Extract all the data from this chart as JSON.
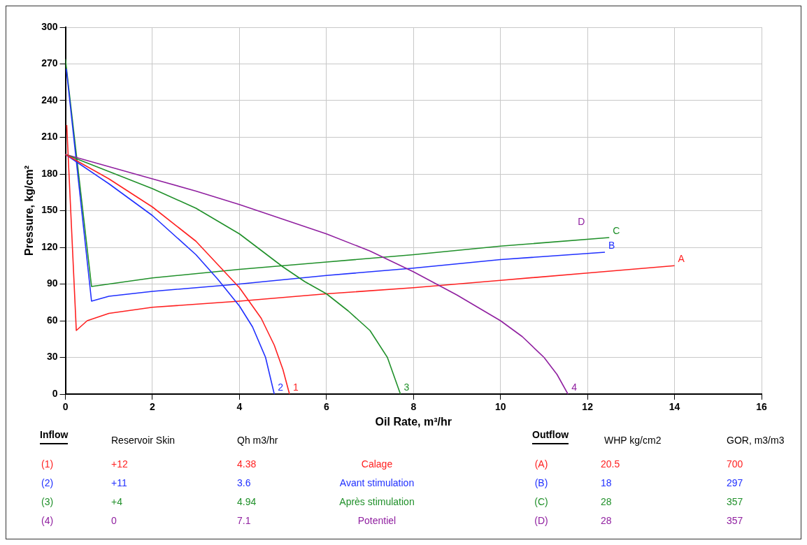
{
  "chart_data": {
    "type": "line",
    "xlabel": "Oil Rate, m³/hr",
    "ylabel": "Pressure, kg/cm²",
    "xlim": [
      0,
      16
    ],
    "ylim": [
      0,
      300
    ],
    "xticks": [
      0,
      2,
      4,
      6,
      8,
      10,
      12,
      14,
      16
    ],
    "yticks": [
      0,
      30,
      60,
      90,
      120,
      150,
      180,
      210,
      240,
      270,
      300
    ],
    "grid": true,
    "legend": false,
    "marker": "none",
    "line_style": "solid",
    "series": [
      {
        "name": "1",
        "color": "#ff2020",
        "x": [
          0,
          1,
          2,
          3,
          3.5,
          4,
          4.5,
          4.8,
          5.0,
          5.15
        ],
        "values": [
          196,
          176,
          153,
          125,
          106,
          87,
          62,
          40,
          20,
          0
        ]
      },
      {
        "name": "2",
        "color": "#2030ff",
        "x": [
          0,
          1,
          2,
          3,
          3.5,
          4,
          4.3,
          4.6,
          4.8
        ],
        "values": [
          196,
          172,
          146,
          114,
          94,
          72,
          55,
          30,
          0
        ]
      },
      {
        "name": "3",
        "color": "#20902a",
        "x": [
          0,
          1,
          2,
          3,
          4,
          5,
          5.5,
          6,
          6.5,
          7,
          7.4,
          7.7
        ],
        "values": [
          196,
          182,
          168,
          152,
          131,
          104,
          92,
          82,
          68,
          52,
          30,
          0
        ]
      },
      {
        "name": "4",
        "color": "#9020a0",
        "x": [
          0,
          1,
          2,
          3,
          4,
          5,
          6,
          7,
          8,
          9,
          10,
          10.5,
          11,
          11.3,
          11.55
        ],
        "values": [
          196,
          186,
          176,
          166,
          155,
          143,
          131,
          117,
          100,
          81,
          60,
          47,
          30,
          16,
          0
        ]
      },
      {
        "name": "A",
        "color": "#ff2020",
        "x": [
          0.03,
          0.25,
          0.5,
          1,
          2,
          4,
          6,
          8,
          10,
          12,
          14
        ],
        "values": [
          220,
          52,
          60,
          66,
          71,
          76,
          82,
          87,
          93,
          99,
          105
        ]
      },
      {
        "name": "B",
        "color": "#2030ff",
        "x": [
          0.02,
          0.6,
          1,
          2,
          4,
          6,
          8,
          10,
          12.4
        ],
        "values": [
          266,
          76,
          80,
          84,
          90,
          97,
          103,
          110,
          116
        ]
      },
      {
        "name": "C",
        "color": "#20902a",
        "x": [
          0,
          0.6,
          2,
          4,
          6,
          8,
          10,
          12.5
        ],
        "values": [
          274,
          88,
          95,
          102,
          108,
          114,
          121,
          128
        ]
      }
    ],
    "annotations": [
      "D",
      "Inflow",
      "Reservoir Skin",
      "Qh m3/hr",
      "Outflow",
      "WHP  kg/cm2",
      "GOR, m3/m3",
      "(1)",
      "+12",
      "4.38",
      "Calage",
      "(A)",
      "20.5",
      "700",
      "(2)",
      "+11",
      "3.6",
      "Avant stimulation",
      "(B)",
      "18",
      "297",
      "(3)",
      "+4",
      "4.94",
      "Après stimulation",
      "(C)",
      "28",
      "357",
      "(4)",
      "0",
      "7.1",
      "Potentiel",
      "(D)",
      "28",
      "357"
    ]
  }
}
